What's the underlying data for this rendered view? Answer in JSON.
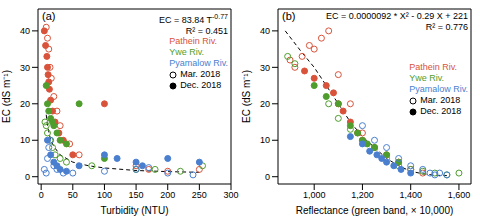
{
  "chart_data": [
    {
      "type": "scatter",
      "panel_label": "(a)",
      "x_label": "Turbidity (NTU)",
      "y_label": "EC (dS m⁻¹)",
      "xlim": [
        -5,
        300
      ],
      "xticks": [
        0,
        50,
        100,
        150,
        200,
        250,
        300
      ],
      "ylim": [
        -2,
        46
      ],
      "yticks": [
        0,
        10,
        20,
        30,
        40
      ],
      "annotations": [
        {
          "text": "EC = 83.84 T",
          "superscript": "-0.77"
        },
        {
          "text": "R² = 0.451"
        }
      ],
      "legend": "upper right",
      "rivers": [
        {
          "name": "Pathein Riv.",
          "color": "#d9533b"
        },
        {
          "name": "Ywe Riv.",
          "color": "#4f9e2d"
        },
        {
          "name": "Pyamalow Riv.",
          "color": "#4a7fd0"
        }
      ],
      "months": [
        {
          "name": "Mar. 2018",
          "marker": "open"
        },
        {
          "name": "Dec. 2018",
          "marker": "filled"
        }
      ],
      "series": [
        {
          "river": "Pathein Riv.",
          "month": "Mar. 2018",
          "x": [
            8,
            10,
            12,
            14,
            16,
            20,
            25,
            30,
            45,
            60,
            150,
            170,
            200,
            250
          ],
          "y": [
            41,
            38,
            35,
            30,
            27,
            22,
            18,
            14,
            9,
            6,
            3,
            2,
            1.5,
            2
          ]
        },
        {
          "river": "Pathein Riv.",
          "month": "Dec. 2018",
          "x": [
            5,
            7,
            9,
            10,
            11,
            12,
            13,
            15,
            18,
            22,
            28,
            35,
            50,
            100
          ],
          "y": [
            40,
            36,
            33,
            30,
            28,
            26,
            24,
            21,
            18,
            15,
            12,
            10,
            6,
            20
          ]
        },
        {
          "river": "Ywe Riv.",
          "month": "Mar. 2018",
          "x": [
            6,
            8,
            10,
            14,
            18,
            22,
            30,
            40,
            80,
            150,
            180,
            220,
            255
          ],
          "y": [
            15,
            14,
            12,
            10,
            8,
            6,
            5,
            4,
            3,
            2,
            2,
            1.5,
            3
          ]
        },
        {
          "river": "Ywe Riv.",
          "month": "Dec. 2018",
          "x": [
            8,
            10,
            12,
            15,
            18,
            20,
            25,
            30,
            40,
            60,
            100
          ],
          "y": [
            25,
            20,
            18,
            16,
            15,
            14,
            12,
            10,
            9,
            20,
            5
          ]
        },
        {
          "river": "Pyamalow Riv.",
          "month": "Mar. 2018",
          "x": [
            5,
            8,
            10,
            12,
            15,
            20,
            25,
            35,
            50,
            100,
            150,
            170,
            200,
            240
          ],
          "y": [
            2,
            1,
            5,
            8,
            10,
            3,
            2,
            1,
            1,
            1.5,
            2,
            2.5,
            1,
            0.5
          ]
        },
        {
          "river": "Pyamalow Riv.",
          "month": "Dec. 2018",
          "x": [
            10,
            15,
            20,
            25,
            30,
            40,
            60,
            100,
            120,
            150,
            160,
            200,
            250
          ],
          "y": [
            10,
            6,
            4,
            3,
            2,
            1.5,
            3,
            6,
            5,
            4,
            3,
            5,
            4
          ]
        }
      ],
      "fit_line": {
        "x": [
          8,
          10,
          15,
          20,
          30,
          50,
          75,
          100,
          150,
          200,
          250
        ],
        "y": [
          17,
          14,
          10,
          8.3,
          6,
          4,
          3,
          2.4,
          1.7,
          1.4,
          1.2
        ],
        "line_style": "dashed"
      }
    },
    {
      "type": "scatter",
      "panel_label": "(b)",
      "x_label": "Reflectance (green band, × 10,000)",
      "y_label": "EC (dS m⁻¹)",
      "xlim": [
        850,
        1650
      ],
      "xticks": [
        {
          "value": 1000,
          "label": "1,000"
        },
        {
          "value": 1200,
          "label": "1,200"
        },
        {
          "value": 1400,
          "label": "1,400"
        },
        {
          "value": 1600,
          "label": "1,600"
        }
      ],
      "ylim": [
        -2,
        46
      ],
      "yticks": [
        0,
        10,
        20,
        30,
        40
      ],
      "annotations": [
        {
          "text": "EC = 0.0000092 * X² - 0.29 X + 221"
        },
        {
          "text": "R² = 0.776"
        }
      ],
      "legend": "right",
      "rivers": [
        {
          "name": "Pathein Riv.",
          "color": "#d9533b"
        },
        {
          "name": "Ywe Riv.",
          "color": "#4f9e2d"
        },
        {
          "name": "Pyamalow Riv.",
          "color": "#4a7fd0"
        }
      ],
      "months": [
        {
          "name": "Mar. 2018",
          "marker": "open"
        },
        {
          "name": "Dec. 2018",
          "marker": "filled"
        }
      ],
      "series": [
        {
          "river": "Pathein Riv.",
          "month": "Mar. 2018",
          "x": [
            900,
            920,
            950,
            980,
            1000,
            1030,
            1060,
            1100,
            1150,
            1200,
            1300,
            1350,
            1400,
            1450
          ],
          "y": [
            32,
            30,
            33,
            36,
            35,
            38,
            40,
            28,
            20,
            12,
            6,
            4,
            2,
            1
          ]
        },
        {
          "river": "Pathein Riv.",
          "month": "Dec. 2018",
          "x": [
            960,
            1000,
            1050,
            1080,
            1100,
            1120,
            1150,
            1180,
            1200,
            1250
          ],
          "y": [
            29,
            27,
            25,
            23,
            20,
            18,
            15,
            12,
            10,
            8
          ]
        },
        {
          "river": "Ywe Riv.",
          "month": "Mar. 2018",
          "x": [
            890,
            920,
            1060,
            1100,
            1150,
            1250,
            1300,
            1350,
            1400,
            1450,
            1500,
            1550,
            1600
          ],
          "y": [
            33,
            31,
            20,
            16,
            13,
            8,
            5,
            3,
            2,
            1.5,
            1,
            0.5,
            1
          ]
        },
        {
          "river": "Ywe Riv.",
          "month": "Dec. 2018",
          "x": [
            1000,
            1050,
            1100,
            1150,
            1180,
            1200,
            1220,
            1250,
            1300,
            1350
          ],
          "y": [
            25,
            22,
            20,
            14,
            12,
            10,
            9,
            8,
            6,
            4
          ]
        },
        {
          "river": "Pyamalow Riv.",
          "month": "Mar. 2018",
          "x": [
            1200,
            1250,
            1300,
            1350,
            1400,
            1450,
            1480,
            1500,
            1520,
            1550
          ],
          "y": [
            14,
            10,
            8,
            5,
            3,
            2,
            1,
            0.5,
            1,
            0.5
          ]
        },
        {
          "river": "Pyamalow Riv.",
          "month": "Dec. 2018",
          "x": [
            1150,
            1200,
            1230,
            1260,
            1280,
            1300,
            1330,
            1360,
            1400
          ],
          "y": [
            11,
            9,
            7,
            6,
            5,
            4,
            3,
            2,
            1
          ]
        }
      ],
      "fit_line": {
        "x": [
          880,
          950,
          1000,
          1050,
          1100,
          1150,
          1200,
          1250,
          1300,
          1350,
          1400,
          1450,
          1500,
          1550
        ],
        "y": [
          40,
          34,
          30,
          25,
          20,
          15,
          11,
          8,
          5,
          3,
          1.5,
          0.8,
          0.4,
          0.3
        ],
        "line_style": "dashed"
      }
    }
  ]
}
